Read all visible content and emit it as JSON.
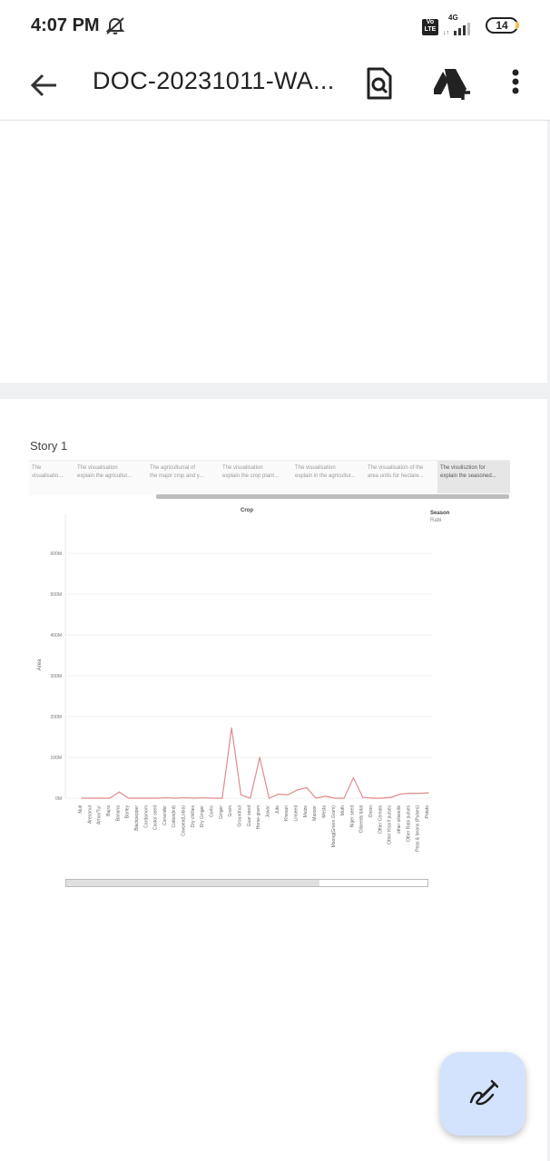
{
  "status_bar": {
    "time": "4:07 PM",
    "volte": "Vo LTE",
    "network": "4G",
    "battery": "14"
  },
  "app_bar": {
    "title": "DOC-20231011-WA..."
  },
  "story": {
    "title": "Story 1",
    "tabs": [
      {
        "line1": "The",
        "line2": "visualisatio..."
      },
      {
        "line1": "The visualisation",
        "line2": "explain the agricultur..."
      },
      {
        "line1": "The agriculturral of",
        "line2": "the major crop and y..."
      },
      {
        "line1": "The visualisation",
        "line2": "explain the crop plant..."
      },
      {
        "line1": "The visualisation",
        "line2": "explain in the agricultur..."
      },
      {
        "line1": "The visualisation of the",
        "line2": "area units for hectare..."
      },
      {
        "line1": "The visulisztion for",
        "line2": "explain the seasoned..."
      }
    ]
  },
  "chart_data": {
    "type": "line",
    "title": "Crop",
    "xlabel": "",
    "ylabel": "Area",
    "legend": {
      "title": "Season",
      "item": "Rabi"
    },
    "ylim": [
      0,
      650
    ],
    "yticks": [
      "0M",
      "100M",
      "200M",
      "300M",
      "400M",
      "500M",
      "600M"
    ],
    "ytick_values": [
      0,
      100,
      200,
      300,
      400,
      500,
      600
    ],
    "color": "#e08b8b",
    "categories": [
      "Null",
      "Arecanut",
      "Arhar/Tur",
      "Bajra",
      "Banana",
      "Barley",
      "Blackpepper",
      "Cardamom",
      "Castor seed",
      "Coriander",
      "Cotton(lint)",
      "Cowpea(Lobia)",
      "Dry chillies",
      "Dry Ginger",
      "Garlic",
      "Ginger",
      "Gram",
      "Groundnut",
      "Guar seed",
      "Horse-gram",
      "Jowar",
      "Jute",
      "Khesari",
      "Linseed",
      "Maize",
      "Masoor",
      "Mesta",
      "Moong(Green Gram)",
      "Moth",
      "Niger seed",
      "Oilseeds total",
      "Onion",
      "Other Cereals",
      "Other Kharif pulses",
      "other oilseeds",
      "Other Rabi pulses",
      "Peas & beans (Pulses)",
      "Potato"
    ],
    "values": [
      0,
      0,
      0,
      0,
      15,
      0,
      0,
      0,
      0,
      1,
      0,
      1,
      0,
      1,
      0,
      0,
      172,
      8,
      0,
      100,
      0,
      10,
      8,
      20,
      26,
      0,
      5,
      0,
      0,
      50,
      2,
      0,
      0,
      2,
      10,
      12,
      12,
      13
    ]
  },
  "colors": {
    "accent": "#d3e3fd",
    "line": "#e08b8b"
  }
}
